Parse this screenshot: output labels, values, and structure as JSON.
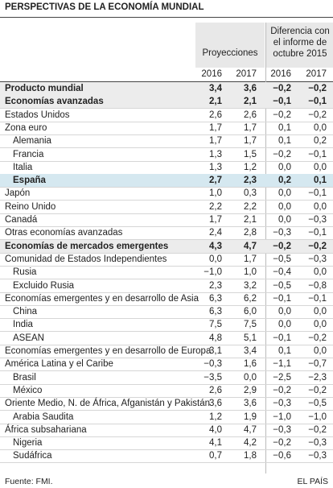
{
  "title": "PERSPECTIVAS DE LA ECONOMÍA MUNDIAL",
  "header": {
    "projections": "Proyecciones",
    "difference": "Diferencia con el informe de octubre 2015",
    "years": [
      "2016",
      "2017",
      "2016",
      "2017"
    ]
  },
  "table": {
    "rows": [
      {
        "cells": [
          "Producto mundial",
          "3,4",
          "3,6",
          "−0,2",
          "−0,2"
        ],
        "bold": true
      },
      {
        "cells": [
          "Economías avanzadas",
          "2,1",
          "2,1",
          "−0,1",
          "−0,1"
        ],
        "bold": true
      },
      {
        "cells": [
          "Estados Unidos",
          "2,6",
          "2,6",
          "−0,2",
          "−0,2"
        ]
      },
      {
        "cells": [
          "Zona euro",
          "1,7",
          "1,7",
          "0,1",
          "0,0"
        ]
      },
      {
        "cells": [
          "Alemania",
          "1,7",
          "1,7",
          "0,1",
          "0,2"
        ],
        "indent": true
      },
      {
        "cells": [
          "Francia",
          "1,3",
          "1,5",
          "−0,2",
          "−0,1"
        ],
        "indent": true
      },
      {
        "cells": [
          "Italia",
          "1,3",
          "1,2",
          "0,0",
          "0,0"
        ],
        "indent": true
      },
      {
        "cells": [
          "España",
          "2,7",
          "2,3",
          "0,2",
          "0,1"
        ],
        "indent": true,
        "bold": true,
        "highlight": true
      },
      {
        "cells": [
          "Japón",
          "1,0",
          "0,3",
          "0,0",
          "−0,1"
        ]
      },
      {
        "cells": [
          "Reino Unido",
          "2,2",
          "2,2",
          "0,0",
          "0,0"
        ]
      },
      {
        "cells": [
          "Canadá",
          "1,7",
          "2,1",
          "0,0",
          "−0,3"
        ]
      },
      {
        "cells": [
          "Otras economías avanzadas",
          "2,4",
          "2,8",
          "−0,3",
          "−0,1"
        ]
      },
      {
        "cells": [
          "Economías de mercados emergentes",
          "4,3",
          "4,7",
          "−0,2",
          "−0,2"
        ],
        "bold": true
      },
      {
        "cells": [
          "Comunidad de Estados Independientes",
          "0,0",
          "1,7",
          "−0,5",
          "−0,3"
        ]
      },
      {
        "cells": [
          "Rusia",
          "−1,0",
          "1,0",
          "−0,4",
          "0,0"
        ],
        "indent": true
      },
      {
        "cells": [
          "Excluido Rusia",
          "2,3",
          "3,2",
          "−0,5",
          "−0,8"
        ],
        "indent": true
      },
      {
        "cells": [
          "Economías emergentes y en desarrollo de Asia",
          "6,3",
          "6,2",
          "−0,1",
          "−0,1"
        ]
      },
      {
        "cells": [
          "China",
          "6,3",
          "6,0",
          "0,0",
          "0,0"
        ],
        "indent": true
      },
      {
        "cells": [
          "India",
          "7,5",
          "7,5",
          "0,0",
          "0,0"
        ],
        "indent": true
      },
      {
        "cells": [
          "ASEAN",
          "4,8",
          "5,1",
          "−0,1",
          "−0,2"
        ],
        "indent": true
      },
      {
        "cells": [
          "Economías emergentes y en desarrollo de Europa",
          "3,1",
          "3,4",
          "0,1",
          "0,0"
        ]
      },
      {
        "cells": [
          "América Latina y el Caribe",
          "−0,3",
          "1,6",
          "−1,1",
          "−0,7"
        ]
      },
      {
        "cells": [
          "Brasil",
          "−3,5",
          "0,0",
          "−2,5",
          "−2,3"
        ],
        "indent": true
      },
      {
        "cells": [
          "México",
          "2,6",
          "2,9",
          "−0,2",
          "−0,2"
        ],
        "indent": true
      },
      {
        "cells": [
          "Oriente Medio, N. de África, Afganistán y Pakistán",
          "3,6",
          "3,6",
          "−0,3",
          "−0,5"
        ]
      },
      {
        "cells": [
          "Arabia Saudita",
          "1,2",
          "1,9",
          "−1,0",
          "−1,0"
        ],
        "indent": true
      },
      {
        "cells": [
          "África subsahariana",
          "4,0",
          "4,7",
          "−0,3",
          "−0,2"
        ]
      },
      {
        "cells": [
          "Nigeria",
          "4,1",
          "4,2",
          "−0,2",
          "−0,3"
        ],
        "indent": true
      },
      {
        "cells": [
          "Sudáfrica",
          "0,7",
          "1,8",
          "−0,6",
          "−0,3"
        ],
        "indent": true
      }
    ]
  },
  "footer": {
    "source": "Fuente: FMI.",
    "brand": "EL PAÍS"
  }
}
